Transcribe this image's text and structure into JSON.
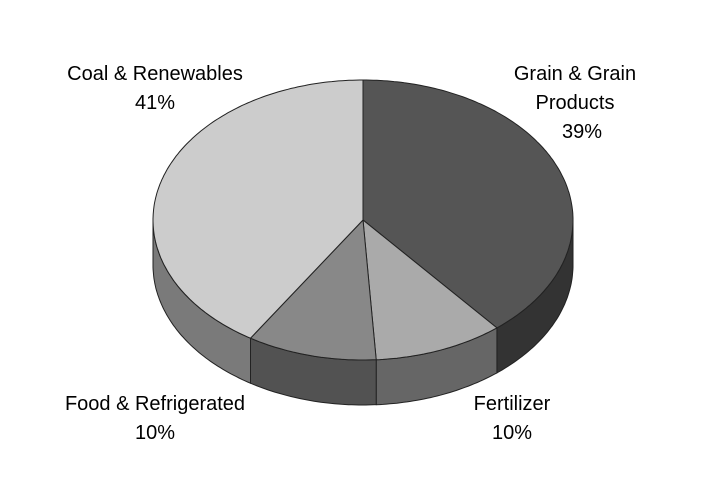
{
  "chart_data": {
    "type": "pie",
    "categories": [
      "Grain & Grain Products",
      "Fertilizer",
      "Food & Refrigerated",
      "Coal & Renewables"
    ],
    "values": [
      39,
      10,
      10,
      41
    ],
    "value_labels": [
      "39%",
      "10%",
      "10%",
      "41%"
    ],
    "colors": [
      "#555555",
      "#aaaaaa",
      "#888888",
      "#cccccc"
    ]
  }
}
